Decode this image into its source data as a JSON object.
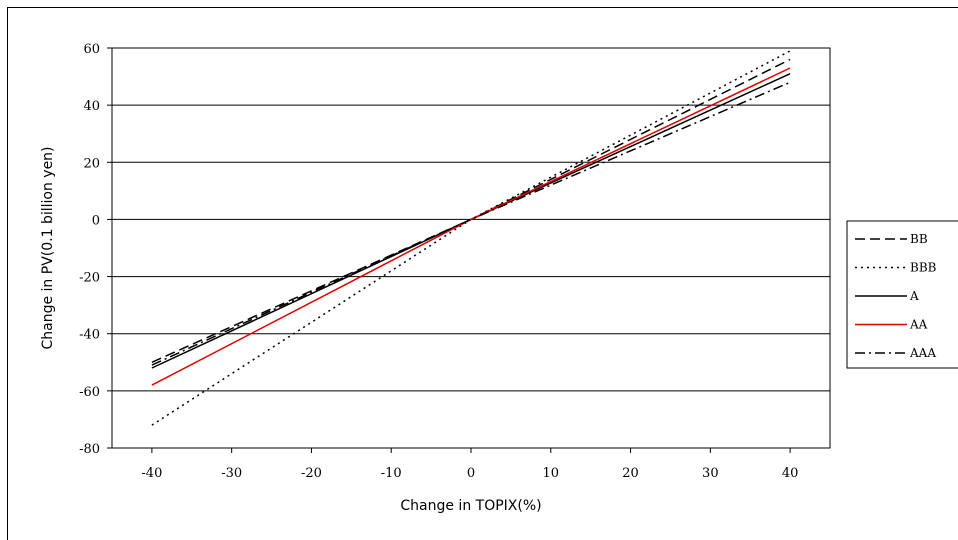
{
  "chart_data": {
    "type": "line",
    "xlabel": "Change in TOPIX(%)",
    "ylabel": "Change in PV(0.1 billion yen)",
    "xlim": [
      -45,
      45
    ],
    "ylim": [
      -80,
      60
    ],
    "x_ticks": [
      -40,
      -30,
      -20,
      -10,
      0,
      10,
      20,
      30,
      40
    ],
    "y_ticks": [
      -80,
      -60,
      -40,
      -20,
      0,
      20,
      40,
      60
    ],
    "grid": "horizontal",
    "legend_position": "right",
    "x": [
      -40,
      0,
      40
    ],
    "series": [
      {
        "name": "BB",
        "values": [
          -50,
          0,
          56
        ],
        "color": "#000000",
        "dash": "10,5"
      },
      {
        "name": "BBB",
        "values": [
          -72,
          0,
          59
        ],
        "color": "#000000",
        "dash": "2,4"
      },
      {
        "name": "A",
        "values": [
          -52,
          0,
          51
        ],
        "color": "#000000",
        "dash": ""
      },
      {
        "name": "AA",
        "values": [
          -58,
          0,
          53
        ],
        "color": "#e00000",
        "dash": ""
      },
      {
        "name": "AAA",
        "values": [
          -51,
          0,
          48
        ],
        "color": "#000000",
        "dash": "10,4,2,4"
      }
    ]
  }
}
